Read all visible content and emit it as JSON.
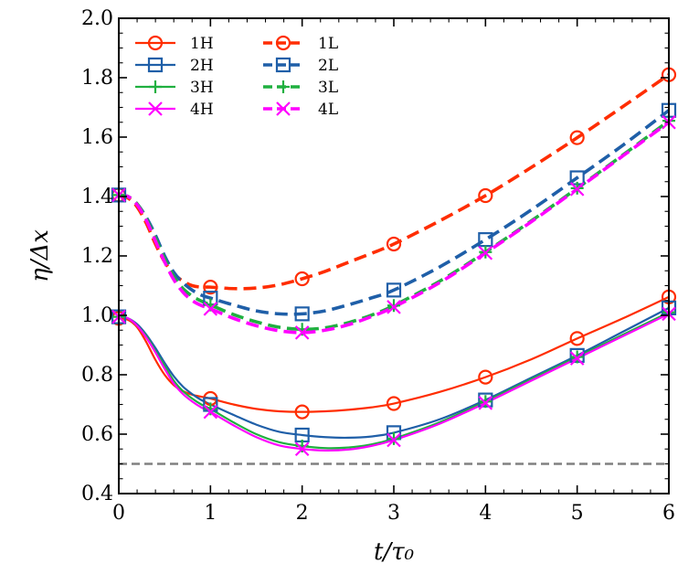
{
  "chart_data": {
    "type": "line",
    "title": "",
    "xlabel": "t/τ₀",
    "ylabel": "η/Δx",
    "xlim": [
      0,
      6
    ],
    "ylim": [
      0.4,
      2.0
    ],
    "x_ticks": [
      0,
      1,
      2,
      3,
      4,
      5,
      6
    ],
    "y_ticks": [
      0.4,
      0.6,
      0.8,
      1.0,
      1.2,
      1.4,
      1.6,
      1.8,
      2.0
    ],
    "x_tick_labels": [
      "0",
      "1",
      "2",
      "3",
      "4",
      "5",
      "6"
    ],
    "y_tick_labels": [
      "0.4",
      "0.6",
      "0.8",
      "1.0",
      "1.2",
      "1.4",
      "1.6",
      "1.8",
      "2.0"
    ],
    "grid": false,
    "legend_position": "top-left",
    "reference_line": {
      "y": 0.5,
      "color": "#808080",
      "style": "dashed"
    },
    "series": [
      {
        "name": "1H",
        "color": "#ff2d00",
        "dash": "solid",
        "marker": "circle",
        "curve_x": [
          0,
          0.1,
          0.2,
          0.3,
          0.4,
          0.5,
          0.6,
          0.7,
          0.8,
          0.9,
          1.0,
          1.25,
          1.5,
          1.75,
          2.0,
          2.25,
          2.5,
          2.75,
          3.0,
          3.5,
          4.0,
          4.5,
          5.0,
          5.5,
          6.0
        ],
        "curve_y": [
          0.99,
          0.985,
          0.96,
          0.91,
          0.85,
          0.8,
          0.765,
          0.745,
          0.733,
          0.726,
          0.72,
          0.7,
          0.685,
          0.677,
          0.675,
          0.677,
          0.682,
          0.69,
          0.703,
          0.742,
          0.792,
          0.852,
          0.922,
          0.99,
          1.062
        ],
        "marker_x": [
          0,
          1,
          2,
          3,
          4,
          5,
          6
        ],
        "marker_y": [
          0.99,
          0.72,
          0.675,
          0.703,
          0.792,
          0.922,
          1.062
        ]
      },
      {
        "name": "2H",
        "color": "#1f5fa8",
        "dash": "solid",
        "marker": "square",
        "curve_x": [
          0,
          0.1,
          0.2,
          0.3,
          0.4,
          0.5,
          0.6,
          0.7,
          0.8,
          0.9,
          1.0,
          1.25,
          1.5,
          1.75,
          2.0,
          2.25,
          2.5,
          2.75,
          3.0,
          3.5,
          4.0,
          4.5,
          5.0,
          5.5,
          6.0
        ],
        "curve_y": [
          0.995,
          0.99,
          0.97,
          0.935,
          0.89,
          0.84,
          0.795,
          0.76,
          0.735,
          0.715,
          0.7,
          0.665,
          0.632,
          0.608,
          0.597,
          0.59,
          0.588,
          0.592,
          0.605,
          0.65,
          0.715,
          0.79,
          0.865,
          0.945,
          1.025
        ],
        "marker_x": [
          0,
          1,
          2,
          3,
          4,
          5,
          6
        ],
        "marker_y": [
          0.995,
          0.7,
          0.597,
          0.605,
          0.715,
          0.865,
          1.025
        ]
      },
      {
        "name": "3H",
        "color": "#20b040",
        "dash": "solid",
        "marker": "plus",
        "curve_x": [
          0,
          0.1,
          0.2,
          0.3,
          0.4,
          0.5,
          0.6,
          0.7,
          0.8,
          0.9,
          1.0,
          1.25,
          1.5,
          1.75,
          2.0,
          2.25,
          2.5,
          2.75,
          3.0,
          3.5,
          4.0,
          4.5,
          5.0,
          5.5,
          6.0
        ],
        "curve_y": [
          0.995,
          0.99,
          0.965,
          0.93,
          0.88,
          0.83,
          0.78,
          0.745,
          0.72,
          0.7,
          0.685,
          0.64,
          0.6,
          0.573,
          0.56,
          0.553,
          0.555,
          0.565,
          0.585,
          0.64,
          0.71,
          0.785,
          0.86,
          0.935,
          1.01
        ],
        "marker_x": [
          0,
          1,
          2,
          3,
          4,
          5,
          6
        ],
        "marker_y": [
          0.995,
          0.685,
          0.56,
          0.585,
          0.71,
          0.86,
          1.01
        ]
      },
      {
        "name": "4H",
        "color": "#ff00ff",
        "dash": "solid",
        "marker": "x",
        "curve_x": [
          0,
          0.1,
          0.2,
          0.3,
          0.4,
          0.5,
          0.6,
          0.7,
          0.8,
          0.9,
          1.0,
          1.25,
          1.5,
          1.75,
          2.0,
          2.25,
          2.5,
          2.75,
          3.0,
          3.5,
          4.0,
          4.5,
          5.0,
          5.5,
          6.0
        ],
        "curve_y": [
          0.995,
          0.99,
          0.965,
          0.925,
          0.875,
          0.82,
          0.77,
          0.735,
          0.71,
          0.69,
          0.675,
          0.63,
          0.59,
          0.562,
          0.55,
          0.545,
          0.548,
          0.56,
          0.58,
          0.635,
          0.705,
          0.78,
          0.855,
          0.93,
          1.005
        ],
        "marker_x": [
          0,
          1,
          2,
          3,
          4,
          5,
          6
        ],
        "marker_y": [
          0.995,
          0.675,
          0.55,
          0.58,
          0.705,
          0.855,
          1.005
        ]
      },
      {
        "name": "1L",
        "color": "#ff2d00",
        "dash": "dashed",
        "marker": "circle",
        "curve_x": [
          0,
          0.1,
          0.2,
          0.3,
          0.4,
          0.5,
          0.6,
          0.7,
          0.8,
          0.9,
          1.0,
          1.25,
          1.5,
          1.75,
          2.0,
          2.25,
          2.5,
          2.75,
          3.0,
          3.5,
          4.0,
          4.5,
          5.0,
          5.5,
          6.0
        ],
        "curve_y": [
          1.405,
          1.395,
          1.365,
          1.31,
          1.24,
          1.18,
          1.14,
          1.115,
          1.1,
          1.095,
          1.095,
          1.09,
          1.092,
          1.103,
          1.123,
          1.148,
          1.178,
          1.208,
          1.24,
          1.318,
          1.403,
          1.498,
          1.598,
          1.703,
          1.81
        ],
        "marker_x": [
          0,
          1,
          2,
          3,
          4,
          5,
          6
        ],
        "marker_y": [
          1.405,
          1.095,
          1.123,
          1.24,
          1.403,
          1.598,
          1.81
        ]
      },
      {
        "name": "2L",
        "color": "#1f5fa8",
        "dash": "dashed",
        "marker": "square",
        "curve_x": [
          0,
          0.1,
          0.2,
          0.3,
          0.4,
          0.5,
          0.6,
          0.7,
          0.8,
          0.9,
          1.0,
          1.25,
          1.5,
          1.75,
          2.0,
          2.25,
          2.5,
          2.75,
          3.0,
          3.5,
          4.0,
          4.5,
          5.0,
          5.5,
          6.0
        ],
        "curve_y": [
          1.405,
          1.4,
          1.375,
          1.33,
          1.27,
          1.2,
          1.145,
          1.11,
          1.085,
          1.068,
          1.058,
          1.035,
          1.015,
          1.005,
          1.005,
          1.015,
          1.035,
          1.058,
          1.085,
          1.163,
          1.255,
          1.355,
          1.463,
          1.573,
          1.69
        ],
        "marker_x": [
          0,
          1,
          2,
          3,
          4,
          5,
          6
        ],
        "marker_y": [
          1.405,
          1.058,
          1.005,
          1.085,
          1.255,
          1.463,
          1.69
        ]
      },
      {
        "name": "3L",
        "color": "#20b040",
        "dash": "dashed",
        "marker": "plus",
        "curve_x": [
          0,
          0.1,
          0.2,
          0.3,
          0.4,
          0.5,
          0.6,
          0.7,
          0.8,
          0.9,
          1.0,
          1.25,
          1.5,
          1.75,
          2.0,
          2.25,
          2.5,
          2.75,
          3.0,
          3.5,
          4.0,
          4.5,
          5.0,
          5.5,
          6.0
        ],
        "curve_y": [
          1.405,
          1.4,
          1.375,
          1.325,
          1.26,
          1.19,
          1.13,
          1.09,
          1.065,
          1.048,
          1.035,
          1.003,
          0.978,
          0.96,
          0.953,
          0.958,
          0.975,
          1.0,
          1.033,
          1.115,
          1.213,
          1.318,
          1.428,
          1.54,
          1.655
        ],
        "marker_x": [
          0,
          1,
          2,
          3,
          4,
          5,
          6
        ],
        "marker_y": [
          1.405,
          1.035,
          0.953,
          1.033,
          1.213,
          1.428,
          1.655
        ]
      },
      {
        "name": "4L",
        "color": "#ff00ff",
        "dash": "dashed",
        "marker": "x",
        "curve_x": [
          0,
          0.1,
          0.2,
          0.3,
          0.4,
          0.5,
          0.6,
          0.7,
          0.8,
          0.9,
          1.0,
          1.25,
          1.5,
          1.75,
          2.0,
          2.25,
          2.5,
          2.75,
          3.0,
          3.5,
          4.0,
          4.5,
          5.0,
          5.5,
          6.0
        ],
        "curve_y": [
          1.405,
          1.4,
          1.372,
          1.32,
          1.25,
          1.18,
          1.12,
          1.078,
          1.05,
          1.033,
          1.022,
          0.99,
          0.965,
          0.948,
          0.942,
          0.95,
          0.968,
          0.995,
          1.028,
          1.11,
          1.21,
          1.315,
          1.425,
          1.537,
          1.65
        ],
        "marker_x": [
          0,
          1,
          2,
          3,
          4,
          5,
          6
        ],
        "marker_y": [
          1.405,
          1.022,
          0.942,
          1.028,
          1.21,
          1.425,
          1.65
        ]
      }
    ]
  }
}
